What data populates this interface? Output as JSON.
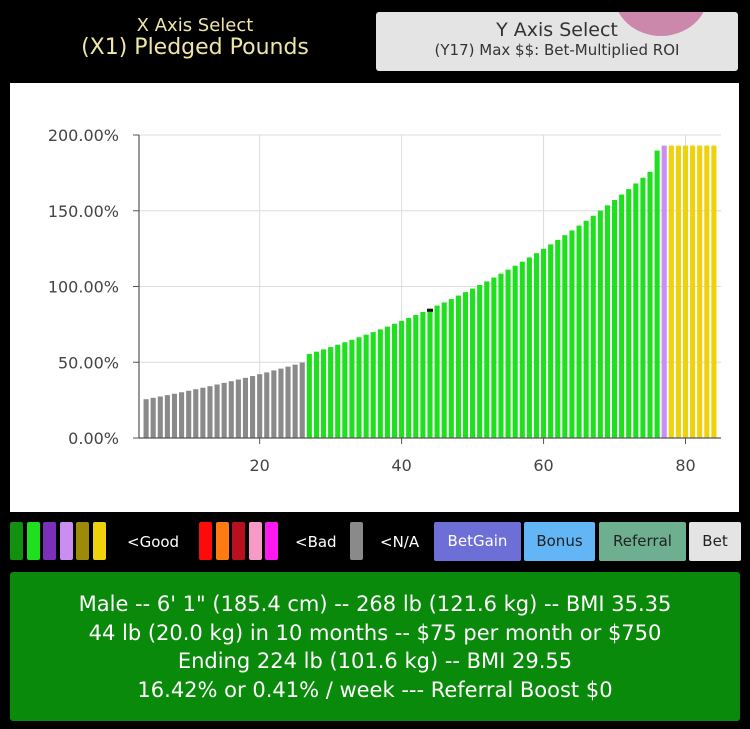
{
  "x_axis_select": {
    "title": "X Axis Select",
    "value": "(X1) Pledged Pounds"
  },
  "y_axis_select": {
    "title": "Y Axis Select",
    "value": "(Y17) Max $$: Bet-Multiplied ROI"
  },
  "chart_data": {
    "type": "bar",
    "x_ticks": [
      20,
      40,
      60,
      80
    ],
    "y_ticks": [
      "0.00%",
      "50.00%",
      "100.00%",
      "150.00%",
      "200.00%"
    ],
    "xlim": [
      3,
      85
    ],
    "ylim": [
      0,
      200
    ],
    "grid": true,
    "colors": {
      "gray": "#8a8a8a",
      "green": "#1fe01f",
      "purple": "#c98ef0",
      "yellow": "#f0d20c",
      "marker": "#111111"
    },
    "series": [
      {
        "category": "N/A",
        "color": "gray",
        "x": [
          4,
          5,
          6,
          7,
          8,
          9,
          10,
          11,
          12,
          13,
          14,
          15,
          16,
          17,
          18,
          19,
          20,
          21,
          22,
          23,
          24,
          25,
          26
        ],
        "values": [
          25.6,
          26.5,
          27.4,
          28.3,
          29.2,
          30.2,
          31.2,
          32.2,
          33.2,
          34.2,
          35.3,
          36.4,
          37.5,
          38.6,
          39.7,
          40.9,
          42.1,
          43.3,
          44.6,
          45.8,
          47.1,
          48.4,
          49.8
        ]
      },
      {
        "category": "Good",
        "color": "green",
        "x": [
          27,
          28,
          29,
          30,
          31,
          32,
          33,
          34,
          35,
          36,
          37,
          38,
          39,
          40,
          41,
          42,
          43,
          44,
          45,
          46,
          47,
          48,
          49,
          50,
          51,
          52,
          53,
          54,
          55,
          56,
          57,
          58,
          59,
          60,
          61,
          62,
          63,
          64,
          65,
          66,
          67,
          68,
          69,
          70,
          71,
          72,
          73,
          74,
          75,
          76
        ],
        "values": [
          55.5,
          57.0,
          58.5,
          60.0,
          61.6,
          63.2,
          64.8,
          66.5,
          68.2,
          69.9,
          71.7,
          73.5,
          75.4,
          77.3,
          79.2,
          81.2,
          83.2,
          85.3,
          87.4,
          89.5,
          91.7,
          94.0,
          96.3,
          98.6,
          101.0,
          103.4,
          105.9,
          108.5,
          111.1,
          113.7,
          116.4,
          119.2,
          122.0,
          124.9,
          127.8,
          130.8,
          133.9,
          137.0,
          140.2,
          143.4,
          146.7,
          150.1,
          153.6,
          157.1,
          160.7,
          164.3,
          168.0,
          171.8,
          175.7,
          189.7
        ]
      },
      {
        "category": "Good",
        "color": "purple",
        "x": [
          77
        ],
        "values": [
          193.0
        ]
      },
      {
        "category": "Good",
        "color": "yellow",
        "x": [
          78,
          79,
          80,
          81,
          82,
          83,
          84
        ],
        "values": [
          193.0,
          193.0,
          193.0,
          193.0,
          193.0,
          193.0,
          193.0
        ]
      }
    ],
    "marker_point": {
      "x": 44,
      "y": 84
    }
  },
  "legend": {
    "good_colors": [
      "#119011",
      "#1fe01f",
      "#7a30b8",
      "#c98ef0",
      "#9c8a08",
      "#f0d20c"
    ],
    "good_label": "<Good",
    "bad_colors": [
      "#ff0a0a",
      "#ff7a12",
      "#b8101e",
      "#f79ac8",
      "#ff18f0"
    ],
    "bad_label": "<Bad",
    "na_color": "#8a8a8a",
    "na_label": "<N/A"
  },
  "buttons": {
    "betgain": {
      "label": "BetGain",
      "color": "#6e6fd6"
    },
    "bonus": {
      "label": "Bonus",
      "color": "#63b6f5"
    },
    "referral": {
      "label": "Referral",
      "color": "#6eaf8f"
    },
    "bet": {
      "label": "Bet",
      "color": "#e4e4e4"
    }
  },
  "info": {
    "line1": "Male -- 6' 1\" (185.4 cm) -- 268 lb (121.6 kg) -- BMI 35.35",
    "line2": "44 lb (20.0 kg) in 10 months -- $75 per month or $750",
    "line3": "Ending 224 lb (101.6 kg) -- BMI 29.55",
    "line4": "16.42% or 0.41% / week --- Referral Boost $0"
  }
}
